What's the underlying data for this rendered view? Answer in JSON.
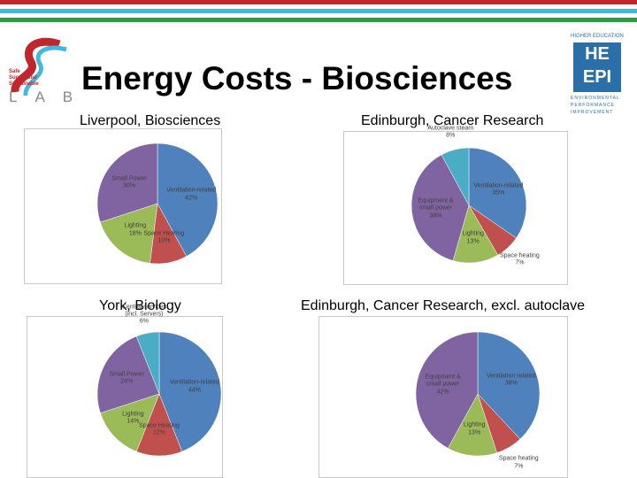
{
  "title": "Energy Costs - Biosciences",
  "logo_left": {
    "tagline": "Safe Successful Sustainable",
    "name": "LAB"
  },
  "logo_right": {
    "top": "HIGHER EDUCATION",
    "line1": "HE",
    "line2": "EPI",
    "bottom": "ENVIRONMENTAL PERFORMANCE IMPROVEMENT"
  },
  "chart_data": [
    {
      "type": "pie",
      "title": "Liverpool, Biosciences",
      "categories": [
        "Ventilation-related",
        "Space Heating",
        "Lighting",
        "Small Power"
      ],
      "values": [
        42,
        10,
        18,
        30
      ],
      "value_labels": [
        "42%",
        "10%",
        "18%",
        "30%"
      ],
      "colors": [
        "#4f81bd",
        "#c0504d",
        "#9bbb59",
        "#8064a2"
      ]
    },
    {
      "type": "pie",
      "title": "Edinburgh, Cancer Research",
      "categories": [
        "Ventilation-related",
        "Space heating",
        "Lighting",
        "Equipment & small power",
        "Autoclave steam"
      ],
      "values": [
        35,
        7,
        13,
        38,
        8
      ],
      "value_labels": [
        "35%",
        "7%",
        "13%",
        "38%",
        "8%"
      ],
      "colors": [
        "#4f81bd",
        "#c0504d",
        "#9bbb59",
        "#8064a2",
        "#4bacc6"
      ]
    },
    {
      "type": "pie",
      "title": "York, Biology",
      "categories": [
        "Ventilation-related",
        "Space Heating",
        "Lighting",
        "Small Power",
        "Central services (incl. Servers)"
      ],
      "values": [
        44,
        12,
        14,
        24,
        6
      ],
      "value_labels": [
        "44%",
        "12%",
        "14%",
        "24%",
        "6%"
      ],
      "colors": [
        "#4f81bd",
        "#c0504d",
        "#9bbb59",
        "#8064a2",
        "#4bacc6"
      ]
    },
    {
      "type": "pie",
      "title": "Edinburgh, Cancer Research, excl. autoclave",
      "categories": [
        "Ventilation related",
        "Space heating",
        "Lighting",
        "Equipment & small power"
      ],
      "values": [
        38,
        7,
        13,
        42
      ],
      "value_labels": [
        "38%",
        "7%",
        "13%",
        "42%"
      ],
      "colors": [
        "#4f81bd",
        "#c0504d",
        "#9bbb59",
        "#8064a2"
      ]
    }
  ]
}
